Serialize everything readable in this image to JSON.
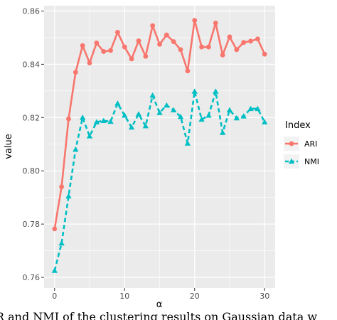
{
  "chart_data": {
    "type": "line",
    "xlabel": "α",
    "ylabel": "value",
    "xlim": [
      -1.5,
      31.5
    ],
    "ylim": [
      0.756,
      0.862
    ],
    "x_ticks": [
      0,
      10,
      20,
      30
    ],
    "y_ticks": [
      0.76,
      0.78,
      0.8,
      0.82,
      0.84,
      0.86
    ],
    "y_tick_labels": [
      "0.76",
      "0.78",
      "0.80",
      "0.82",
      "0.84",
      "0.86"
    ],
    "x_tick_labels": [
      "0",
      "10",
      "20",
      "30"
    ],
    "grid": true,
    "legend": {
      "title": "Index",
      "placement": "right"
    },
    "x": [
      0,
      1,
      2,
      3,
      4,
      5,
      6,
      7,
      8,
      9,
      10,
      11,
      12,
      13,
      14,
      15,
      16,
      17,
      18,
      19,
      20,
      21,
      22,
      23,
      24,
      25,
      26,
      27,
      28,
      29,
      30
    ],
    "series": [
      {
        "name": "ARI",
        "color": "#F8766D",
        "line": "solid",
        "marker": "circle",
        "values": [
          0.7782,
          0.794,
          0.8195,
          0.837,
          0.847,
          0.8405,
          0.848,
          0.8448,
          0.8452,
          0.852,
          0.8465,
          0.842,
          0.8488,
          0.843,
          0.8545,
          0.8475,
          0.851,
          0.8485,
          0.8455,
          0.8375,
          0.8565,
          0.8465,
          0.8465,
          0.8555,
          0.8435,
          0.8503,
          0.8455,
          0.8482,
          0.8487,
          0.8495,
          0.8438
        ]
      },
      {
        "name": "NMI",
        "color": "#00BFC4",
        "line": "dashed",
        "marker": "triangle",
        "values": [
          0.7625,
          0.7728,
          0.7905,
          0.808,
          0.82,
          0.813,
          0.8183,
          0.8188,
          0.8185,
          0.8253,
          0.8208,
          0.8163,
          0.8213,
          0.8168,
          0.8283,
          0.8218,
          0.8246,
          0.8228,
          0.8203,
          0.8103,
          0.8298,
          0.8193,
          0.8208,
          0.8298,
          0.8143,
          0.8228,
          0.8198,
          0.8205,
          0.8233,
          0.8233,
          0.8183
        ]
      }
    ]
  },
  "caption": "R and NMI of the clustering results on Gaussian data w"
}
